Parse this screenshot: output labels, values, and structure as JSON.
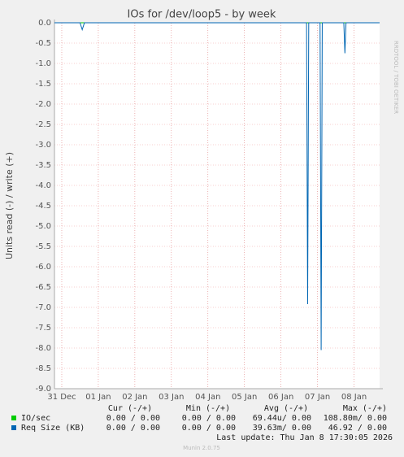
{
  "chart_data": {
    "type": "line",
    "title": "IOs for /dev/loop5 - by week",
    "ylabel": "Units read (-) / write (+)",
    "side_text": "RRDTOOL / TOBI OETIKER",
    "x": [
      -0.2,
      0.5,
      0.56,
      0.62,
      6.7,
      6.73,
      6.76,
      7.07,
      7.1,
      7.13,
      7.72,
      7.75,
      7.78,
      8.7
    ],
    "series": [
      {
        "name": "IO/sec",
        "color": "#00cc00",
        "values": [
          0,
          0,
          0,
          0,
          0,
          0,
          0,
          0,
          0,
          0,
          0,
          0,
          0,
          0
        ]
      },
      {
        "name": "Req Size (KB)",
        "color": "#0066b3",
        "values": [
          0,
          0,
          -0.17,
          0,
          0,
          -6.92,
          0,
          0,
          -8.05,
          0,
          0,
          -0.75,
          0,
          0
        ]
      }
    ],
    "xlim": [
      -0.2,
      8.7
    ],
    "xticks": [
      {
        "value": 0,
        "label": "31 Dec"
      },
      {
        "value": 1,
        "label": "01 Jan"
      },
      {
        "value": 2,
        "label": "02 Jan"
      },
      {
        "value": 3,
        "label": "03 Jan"
      },
      {
        "value": 4,
        "label": "04 Jan"
      },
      {
        "value": 5,
        "label": "05 Jan"
      },
      {
        "value": 6,
        "label": "06 Jan"
      },
      {
        "value": 7,
        "label": "07 Jan"
      },
      {
        "value": 8,
        "label": "08 Jan"
      }
    ],
    "ylim": [
      -9,
      0
    ],
    "yticks": [
      {
        "value": 0,
        "label": "0.0"
      },
      -0.5,
      {
        "value": -1,
        "label": "-1.0"
      },
      -1.5,
      {
        "value": -2,
        "label": "-2.0"
      },
      -2.5,
      {
        "value": -3,
        "label": "-3.0"
      },
      -3.5,
      {
        "value": -4,
        "label": "-4.0"
      },
      -4.5,
      {
        "value": -5,
        "label": "-5.0"
      },
      -5.5,
      {
        "value": -6,
        "label": "-6.0"
      },
      -6.5,
      {
        "value": -7,
        "label": "-7.0"
      },
      -7.5,
      {
        "value": -8,
        "label": "-8.0"
      },
      -8.5,
      {
        "value": -9,
        "label": "-9.0"
      }
    ],
    "grid": true,
    "legend_table": {
      "headers": [
        "Cur (-/+)",
        "Min (-/+)",
        "Avg (-/+)",
        "Max (-/+)"
      ],
      "rows": [
        [
          "0.00 / 0.00",
          "0.00 / 0.00",
          "69.44u/ 0.00",
          "108.80m/ 0.00"
        ],
        [
          "0.00 / 0.00",
          "0.00 / 0.00",
          "39.63m/ 0.00",
          "46.92 / 0.00"
        ]
      ]
    },
    "last_update": "Last update: Thu Jan  8 17:30:05 2026",
    "footer": "Munin 2.0.75"
  }
}
